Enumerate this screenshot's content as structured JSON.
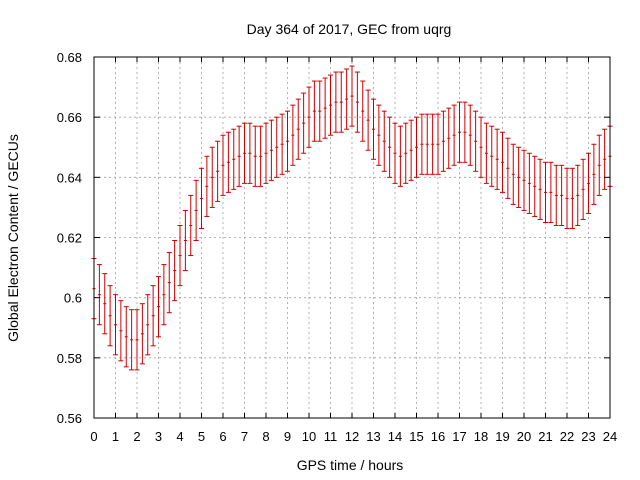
{
  "chart_data": {
    "type": "line",
    "title": "Day 364 of 2017, GEC from uqrg",
    "xlabel": "GPS time / hours",
    "ylabel": "Global Electron Content / GECUs",
    "xlim": [
      0,
      24
    ],
    "ylim": [
      0.56,
      0.68
    ],
    "xticks": [
      0,
      1,
      2,
      3,
      4,
      5,
      6,
      7,
      8,
      9,
      10,
      11,
      12,
      13,
      14,
      15,
      16,
      17,
      18,
      19,
      20,
      21,
      22,
      23,
      24
    ],
    "yticks": [
      0.56,
      0.58,
      0.6,
      0.62,
      0.64,
      0.66,
      0.68
    ],
    "ytick_labels": [
      "0.56",
      "0.58",
      "0.6",
      "0.62",
      "0.64",
      "0.66",
      "0.68"
    ],
    "grid": true,
    "error_bar_halfwidth": 0.01,
    "colors": {
      "series": "#cc0000",
      "grid": "#a0a0a0",
      "axis": "#000000"
    },
    "series": [
      {
        "x": [
          0,
          0.25,
          0.5,
          0.75,
          1,
          1.25,
          1.5,
          1.75,
          2,
          2.25,
          2.5,
          2.75,
          3,
          3.25,
          3.5,
          3.75,
          4,
          4.25,
          4.5,
          4.75,
          5,
          5.25,
          5.5,
          5.75,
          6,
          6.25,
          6.5,
          6.75,
          7,
          7.25,
          7.5,
          7.75,
          8,
          8.25,
          8.5,
          8.75,
          9,
          9.25,
          9.5,
          9.75,
          10,
          10.25,
          10.5,
          10.75,
          11,
          11.25,
          11.5,
          11.75,
          12,
          12.25,
          12.5,
          12.75,
          13,
          13.25,
          13.5,
          13.75,
          14,
          14.25,
          14.5,
          14.75,
          15,
          15.25,
          15.5,
          15.75,
          16,
          16.25,
          16.5,
          16.75,
          17,
          17.25,
          17.5,
          17.75,
          18,
          18.25,
          18.5,
          18.75,
          19,
          19.25,
          19.5,
          19.75,
          20,
          20.25,
          20.5,
          20.75,
          21,
          21.25,
          21.5,
          21.75,
          22,
          22.25,
          22.5,
          22.75,
          23,
          23.25,
          23.5,
          23.75,
          24
        ],
        "y": [
          0.603,
          0.601,
          0.598,
          0.594,
          0.591,
          0.589,
          0.587,
          0.586,
          0.586,
          0.588,
          0.591,
          0.594,
          0.597,
          0.601,
          0.605,
          0.609,
          0.614,
          0.619,
          0.624,
          0.629,
          0.633,
          0.637,
          0.64,
          0.642,
          0.644,
          0.645,
          0.646,
          0.647,
          0.648,
          0.648,
          0.647,
          0.647,
          0.648,
          0.649,
          0.65,
          0.651,
          0.652,
          0.654,
          0.656,
          0.658,
          0.66,
          0.662,
          0.662,
          0.663,
          0.664,
          0.665,
          0.665,
          0.666,
          0.667,
          0.665,
          0.662,
          0.659,
          0.656,
          0.654,
          0.652,
          0.65,
          0.648,
          0.647,
          0.648,
          0.649,
          0.65,
          0.651,
          0.651,
          0.651,
          0.651,
          0.652,
          0.653,
          0.654,
          0.655,
          0.655,
          0.654,
          0.652,
          0.65,
          0.648,
          0.647,
          0.646,
          0.645,
          0.643,
          0.641,
          0.64,
          0.639,
          0.638,
          0.637,
          0.636,
          0.635,
          0.635,
          0.634,
          0.634,
          0.633,
          0.633,
          0.634,
          0.636,
          0.638,
          0.641,
          0.644,
          0.646,
          0.647
        ]
      }
    ]
  }
}
